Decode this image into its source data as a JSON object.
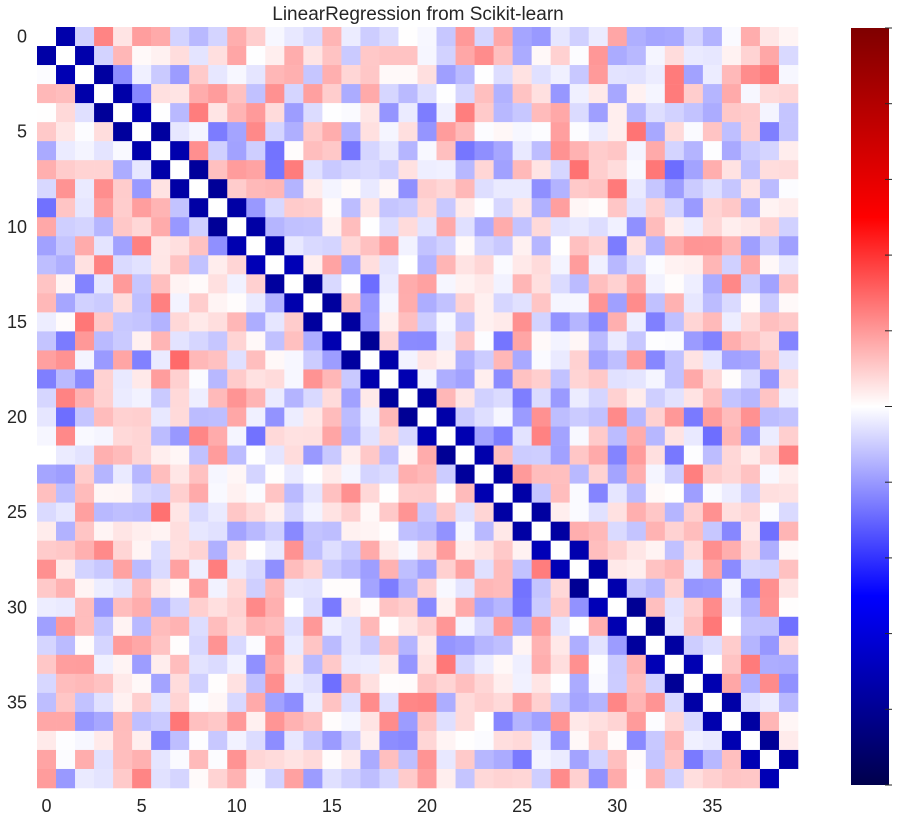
{
  "chart_data": {
    "type": "heatmap",
    "title": "LinearRegression from Scikit-learn",
    "xlabel": "",
    "ylabel": "",
    "rows": 40,
    "cols": 40,
    "x_ticks": [
      0,
      5,
      10,
      15,
      20,
      25,
      30,
      35
    ],
    "y_ticks": [
      0,
      5,
      10,
      15,
      20,
      25,
      30,
      35
    ],
    "colormap": "seismic",
    "colormap_stops": [
      "#00004c",
      "#0000ff",
      "#ffffff",
      "#ff0000",
      "#7f0000"
    ],
    "color_range": [
      -1,
      1
    ],
    "colorbar": {
      "tick_labels_shown": false,
      "ticks_count": 11
    },
    "grid": false,
    "note_values": "cell values estimated from colour; banded structure: each row i has strong negative values at columns i-1 and i+1",
    "band_offsets": [
      -1,
      1
    ],
    "band_value": -0.75,
    "background_values_range": [
      -0.3,
      0.3
    ]
  }
}
